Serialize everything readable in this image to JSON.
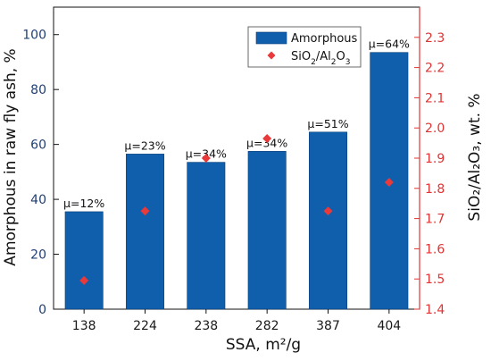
{
  "chart_data": {
    "type": "bar",
    "categories": [
      "138",
      "224",
      "238",
      "282",
      "387",
      "404"
    ],
    "series": [
      {
        "name": "Amorphous",
        "axis": "left",
        "type": "bar",
        "color": "#0f5fad",
        "values": [
          35.5,
          56.5,
          53.5,
          57.5,
          64.5,
          93.5
        ]
      },
      {
        "name": "SiO2/Al2O3",
        "axis": "right",
        "type": "scatter",
        "marker": "diamond",
        "color": "#e83a3a",
        "values": [
          1.495,
          1.725,
          1.9,
          1.965,
          1.725,
          1.82
        ]
      }
    ],
    "bar_labels": [
      "μ=12%",
      "μ=23%",
      "μ=34%",
      "μ=34%",
      "μ=51%",
      "μ=64%"
    ],
    "xlabel": "SSA, m²/g",
    "ylabel_left": "Amorphous in raw fly ash, %",
    "ylabel_right": "SiO₂/Al₂O₃, wt. %",
    "ylim_left": [
      0,
      110
    ],
    "yticks_left": [
      "0",
      "20",
      "40",
      "60",
      "80",
      "100"
    ],
    "ylim_right": [
      1.4,
      2.4
    ],
    "yticks_right": [
      "1.4",
      "1.5",
      "1.6",
      "1.7",
      "1.8",
      "1.9",
      "2.0",
      "2.1",
      "2.2",
      "2.3"
    ],
    "legend_position": "top-center",
    "left_axis_color": "#1f3f73",
    "right_axis_color": "#e03434",
    "grid": false
  }
}
